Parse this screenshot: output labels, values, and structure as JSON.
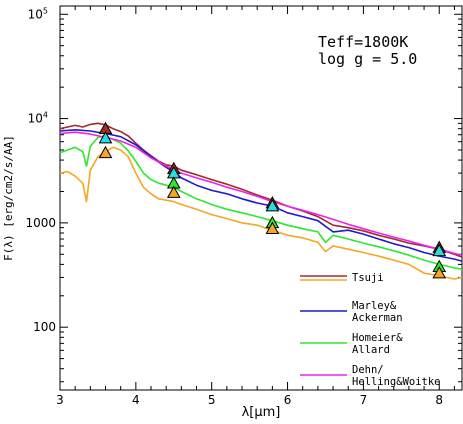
{
  "chart_data": {
    "type": "line",
    "xlabel": "λ[μm]",
    "ylabel": "F(λ) [erg/cm2/s/AA]",
    "xlim": [
      3.0,
      8.3
    ],
    "ylim": [
      25,
      120000
    ],
    "yscale": "log",
    "x_ticks": [
      {
        "value": 3,
        "label": "3"
      },
      {
        "value": 4,
        "label": "4"
      },
      {
        "value": 5,
        "label": "5"
      },
      {
        "value": 6,
        "label": "6"
      },
      {
        "value": 7,
        "label": "7"
      },
      {
        "value": 8,
        "label": "8"
      }
    ],
    "y_ticks": [
      {
        "value": 100,
        "label": "100"
      },
      {
        "value": 1000,
        "label": "1000"
      },
      {
        "value": 10000,
        "label": "10",
        "sup": "4"
      },
      {
        "value": 100000,
        "label": "10",
        "sup": "5"
      }
    ],
    "annotation": [
      "Teff=1800K",
      "log g = 5.0"
    ],
    "legend": {
      "placement": "bottom-right"
    },
    "series": [
      {
        "name": "Tsuji",
        "color": "#a52a2a",
        "x": [
          3.0,
          3.1,
          3.2,
          3.3,
          3.4,
          3.5,
          3.6,
          3.7,
          3.8,
          3.9,
          4.0,
          4.1,
          4.2,
          4.3,
          4.4,
          4.5,
          4.6,
          4.8,
          5.0,
          5.2,
          5.4,
          5.6,
          5.8,
          6.0,
          6.2,
          6.4,
          6.6,
          6.8,
          7.0,
          7.2,
          7.4,
          7.6,
          7.8,
          8.0,
          8.2,
          8.3
        ],
        "y": [
          8000,
          8300,
          8600,
          8300,
          8800,
          9000,
          8700,
          8000,
          7500,
          6800,
          5800,
          5000,
          4400,
          3900,
          3600,
          3500,
          3200,
          2900,
          2600,
          2350,
          2100,
          1850,
          1650,
          1450,
          1300,
          1150,
          950,
          900,
          840,
          760,
          700,
          640,
          600,
          560,
          500,
          470
        ]
      },
      {
        "name": "Tsuji",
        "color": "#f5a623",
        "x": [
          3.0,
          3.1,
          3.2,
          3.3,
          3.35,
          3.4,
          3.5,
          3.6,
          3.7,
          3.8,
          3.9,
          4.0,
          4.1,
          4.2,
          4.3,
          4.4,
          4.5,
          4.6,
          4.8,
          5.0,
          5.2,
          5.4,
          5.6,
          5.8,
          6.0,
          6.2,
          6.4,
          6.5,
          6.6,
          6.8,
          7.0,
          7.2,
          7.4,
          7.6,
          7.8,
          8.0,
          8.2,
          8.3
        ],
        "y": [
          3000,
          3100,
          2800,
          2400,
          1600,
          3200,
          4300,
          4800,
          5300,
          5000,
          4300,
          3000,
          2200,
          1900,
          1700,
          1650,
          1600,
          1500,
          1350,
          1200,
          1100,
          1000,
          950,
          850,
          760,
          720,
          650,
          530,
          600,
          560,
          520,
          480,
          440,
          400,
          330,
          310,
          290,
          300
        ]
      },
      {
        "name": "Marley& Ackerman",
        "color": "#1c1ccc",
        "x": [
          3.0,
          3.2,
          3.4,
          3.6,
          3.8,
          4.0,
          4.2,
          4.4,
          4.5,
          4.6,
          4.8,
          5.0,
          5.2,
          5.4,
          5.6,
          5.8,
          6.0,
          6.2,
          6.4,
          6.6,
          6.8,
          7.0,
          7.2,
          7.4,
          7.6,
          7.8,
          8.0,
          8.2,
          8.3
        ],
        "y": [
          7600,
          7800,
          7600,
          7200,
          6700,
          5600,
          4300,
          3400,
          3100,
          2700,
          2300,
          2050,
          1900,
          1700,
          1550,
          1450,
          1250,
          1150,
          1050,
          820,
          850,
          780,
          700,
          630,
          580,
          520,
          480,
          450,
          430
        ]
      },
      {
        "name": "Homeier& Allard",
        "color": "#2ee82e",
        "x": [
          3.0,
          3.1,
          3.2,
          3.3,
          3.35,
          3.4,
          3.5,
          3.6,
          3.7,
          3.8,
          3.9,
          4.0,
          4.1,
          4.2,
          4.3,
          4.4,
          4.5,
          4.6,
          4.8,
          5.0,
          5.2,
          5.4,
          5.6,
          5.8,
          6.0,
          6.2,
          6.4,
          6.5,
          6.6,
          6.8,
          7.0,
          7.2,
          7.4,
          7.6,
          7.8,
          8.0,
          8.2,
          8.3
        ],
        "y": [
          4700,
          5000,
          5300,
          4800,
          3500,
          5400,
          6600,
          6800,
          6300,
          5800,
          4900,
          3900,
          3000,
          2600,
          2400,
          2300,
          2200,
          2000,
          1700,
          1500,
          1350,
          1250,
          1150,
          1050,
          950,
          880,
          820,
          650,
          760,
          700,
          640,
          590,
          540,
          490,
          440,
          400,
          370,
          360
        ]
      },
      {
        "name": "Dehn/ Helling&Woitke",
        "color": "#ee22ee",
        "x": [
          3.0,
          3.2,
          3.4,
          3.6,
          3.8,
          4.0,
          4.2,
          4.4,
          4.6,
          4.8,
          5.0,
          5.2,
          5.4,
          5.6,
          5.8,
          6.0,
          6.2,
          6.4,
          6.6,
          6.8,
          7.0,
          7.2,
          7.4,
          7.6,
          7.8,
          8.0,
          8.2,
          8.3
        ],
        "y": [
          7200,
          7400,
          7100,
          6600,
          6100,
          5300,
          4200,
          3500,
          3000,
          2700,
          2450,
          2200,
          2000,
          1800,
          1600,
          1450,
          1320,
          1200,
          1080,
          970,
          880,
          800,
          730,
          670,
          610,
          560,
          510,
          490
        ]
      }
    ],
    "markers": [
      {
        "x": 3.6,
        "y": 8000,
        "color": "#a52a2a"
      },
      {
        "x": 3.6,
        "y": 4700,
        "color": "#f5a623"
      },
      {
        "x": 3.6,
        "y": 6500,
        "color": "#26e0e0"
      },
      {
        "x": 4.5,
        "y": 3300,
        "color": "#a52a2a"
      },
      {
        "x": 4.5,
        "y": 3000,
        "color": "#26e0e0"
      },
      {
        "x": 4.5,
        "y": 2400,
        "color": "#2ee82e"
      },
      {
        "x": 4.5,
        "y": 1950,
        "color": "#f5a623"
      },
      {
        "x": 5.8,
        "y": 1550,
        "color": "#a52a2a"
      },
      {
        "x": 5.8,
        "y": 1450,
        "color": "#26e0e0"
      },
      {
        "x": 5.8,
        "y": 1000,
        "color": "#2ee82e"
      },
      {
        "x": 5.8,
        "y": 880,
        "color": "#f5a623"
      },
      {
        "x": 8.0,
        "y": 580,
        "color": "#a52a2a"
      },
      {
        "x": 8.0,
        "y": 540,
        "color": "#26e0e0"
      },
      {
        "x": 8.0,
        "y": 380,
        "color": "#2ee82e"
      },
      {
        "x": 8.0,
        "y": 330,
        "color": "#f5a623"
      }
    ]
  }
}
